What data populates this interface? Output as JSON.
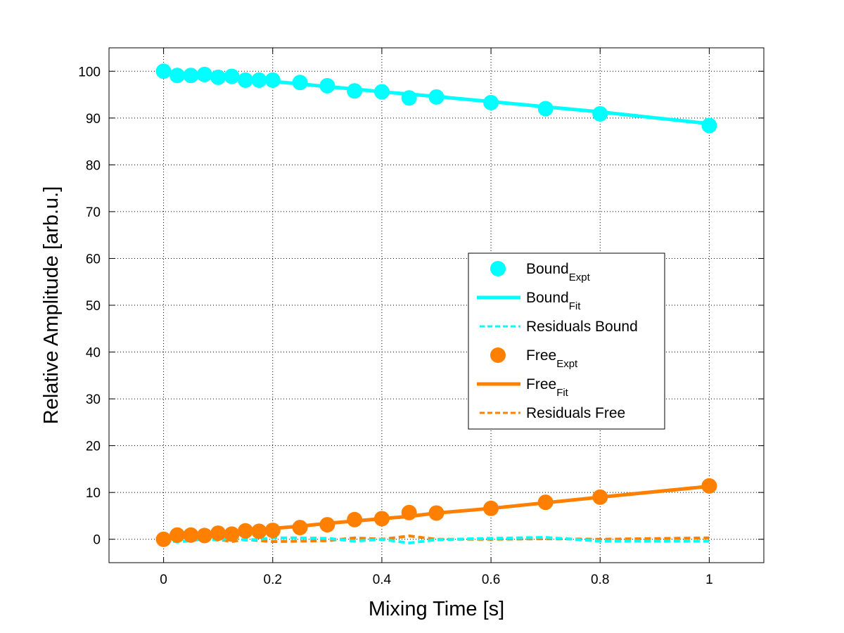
{
  "chart_data": {
    "type": "line",
    "title": "",
    "xlabel": "Mixing Time [s]",
    "ylabel": "Relative Amplitude [arb.u.]",
    "xlim": [
      -0.1,
      1.1
    ],
    "ylim": [
      -5,
      105
    ],
    "xticks": [
      0,
      0.2,
      0.4,
      0.6,
      0.8,
      1
    ],
    "xtick_labels": [
      "0",
      "0.2",
      "0.4",
      "0.6",
      "0.8",
      "1"
    ],
    "yticks": [
      0,
      10,
      20,
      30,
      40,
      50,
      60,
      70,
      80,
      90,
      100
    ],
    "ytick_labels": [
      "0",
      "10",
      "20",
      "30",
      "40",
      "50",
      "60",
      "70",
      "80",
      "90",
      "100"
    ],
    "grid": true,
    "legend_position": "center-right",
    "x": [
      0,
      0.025,
      0.05,
      0.075,
      0.1,
      0.125,
      0.15,
      0.175,
      0.2,
      0.25,
      0.3,
      0.35,
      0.4,
      0.45,
      0.5,
      0.6,
      0.7,
      0.8,
      1.0
    ],
    "series": [
      {
        "name": "Bound_Expt",
        "label_main": "Bound",
        "label_sub": "Expt",
        "style": "marker",
        "color": "#00FFFF",
        "values": [
          100,
          99.1,
          99.1,
          99.3,
          98.7,
          98.9,
          98.1,
          98.1,
          98.1,
          97.6,
          96.9,
          95.8,
          95.6,
          94.3,
          94.5,
          93.3,
          92.0,
          90.9,
          88.4
        ]
      },
      {
        "name": "Bound_Fit",
        "label_main": "Bound",
        "label_sub": "Fit",
        "style": "solid",
        "color": "#00FFFF",
        "values": [
          100,
          99.7,
          99.4,
          99.2,
          98.9,
          98.6,
          98.3,
          98.1,
          97.8,
          97.3,
          96.7,
          96.2,
          95.6,
          95.1,
          94.6,
          93.5,
          92.4,
          91.3,
          88.8
        ]
      },
      {
        "name": "Residuals Bound",
        "label_main": "Residuals Bound",
        "label_sub": "",
        "style": "dashed",
        "color": "#00FFFF",
        "values": [
          0,
          -0.6,
          -0.3,
          0.1,
          -0.2,
          0.3,
          -0.2,
          0,
          0.3,
          0.3,
          0.2,
          -0.4,
          0,
          -0.8,
          -0.1,
          0.2,
          0.4,
          -0.4,
          -0.4
        ]
      },
      {
        "name": "Free_Expt",
        "label_main": "Free",
        "label_sub": "Expt",
        "style": "marker",
        "color": "#FF8000",
        "values": [
          0,
          0.9,
          0.9,
          0.8,
          1.3,
          1.1,
          1.8,
          1.7,
          1.9,
          2.5,
          3.1,
          4.2,
          4.4,
          5.7,
          5.6,
          6.6,
          7.9,
          9.0,
          11.4
        ]
      },
      {
        "name": "Free_Fit",
        "label_main": "Free",
        "label_sub": "Fit",
        "style": "solid",
        "color": "#FF8000",
        "values": [
          0,
          0.4,
          0.7,
          1.0,
          1.3,
          1.6,
          1.8,
          2.0,
          2.3,
          2.8,
          3.4,
          3.9,
          4.4,
          4.9,
          5.6,
          6.6,
          7.8,
          9.0,
          11.3
        ]
      },
      {
        "name": "Residuals Free",
        "label_main": "Residuals Free",
        "label_sub": "",
        "style": "dashed",
        "color": "#FF8000",
        "values": [
          0,
          0.5,
          0.2,
          -0.2,
          0,
          -0.5,
          0,
          -0.3,
          -0.5,
          -0.4,
          -0.3,
          0.3,
          0,
          0.7,
          0,
          0,
          0.1,
          0,
          0.3
        ]
      }
    ]
  }
}
